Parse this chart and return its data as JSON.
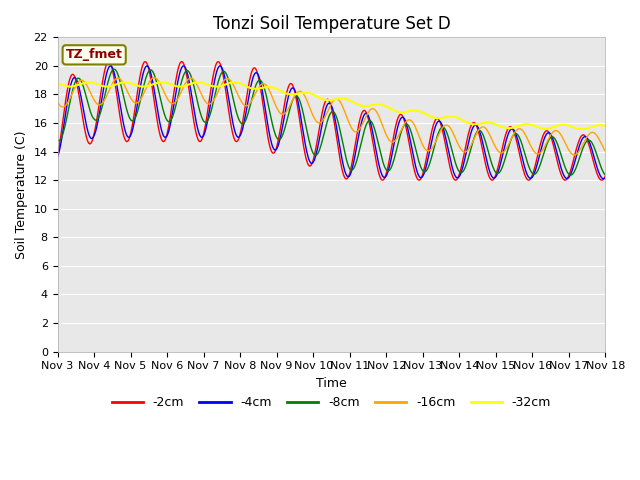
{
  "title": "Tonzi Soil Temperature Set D",
  "xlabel": "Time",
  "ylabel": "Soil Temperature (C)",
  "ylim": [
    0,
    22
  ],
  "yticks": [
    0,
    2,
    4,
    6,
    8,
    10,
    12,
    14,
    16,
    18,
    20,
    22
  ],
  "xtick_labels": [
    "Nov 3",
    "Nov 4",
    "Nov 5",
    "Nov 6",
    "Nov 7",
    "Nov 8",
    "Nov 9",
    "Nov 10",
    "Nov 11",
    "Nov 12",
    "Nov 13",
    "Nov 14",
    "Nov 15",
    "Nov 16",
    "Nov 17",
    "Nov 18"
  ],
  "legend_labels": [
    "-2cm",
    "-4cm",
    "-8cm",
    "-16cm",
    "-32cm"
  ],
  "line_colors": [
    "red",
    "blue",
    "green",
    "orange",
    "yellow"
  ],
  "annotation_text": "TZ_fmet",
  "annotation_color": "#8b0000",
  "annotation_bg": "#fffff0",
  "annotation_edge": "#808000",
  "plot_bg": "#e8e8e8",
  "fig_bg": "#ffffff",
  "grid_color": "#ffffff",
  "title_fontsize": 12,
  "axis_fontsize": 9,
  "tick_fontsize": 8,
  "legend_fontsize": 9,
  "figsize": [
    6.4,
    4.8
  ],
  "dpi": 100
}
